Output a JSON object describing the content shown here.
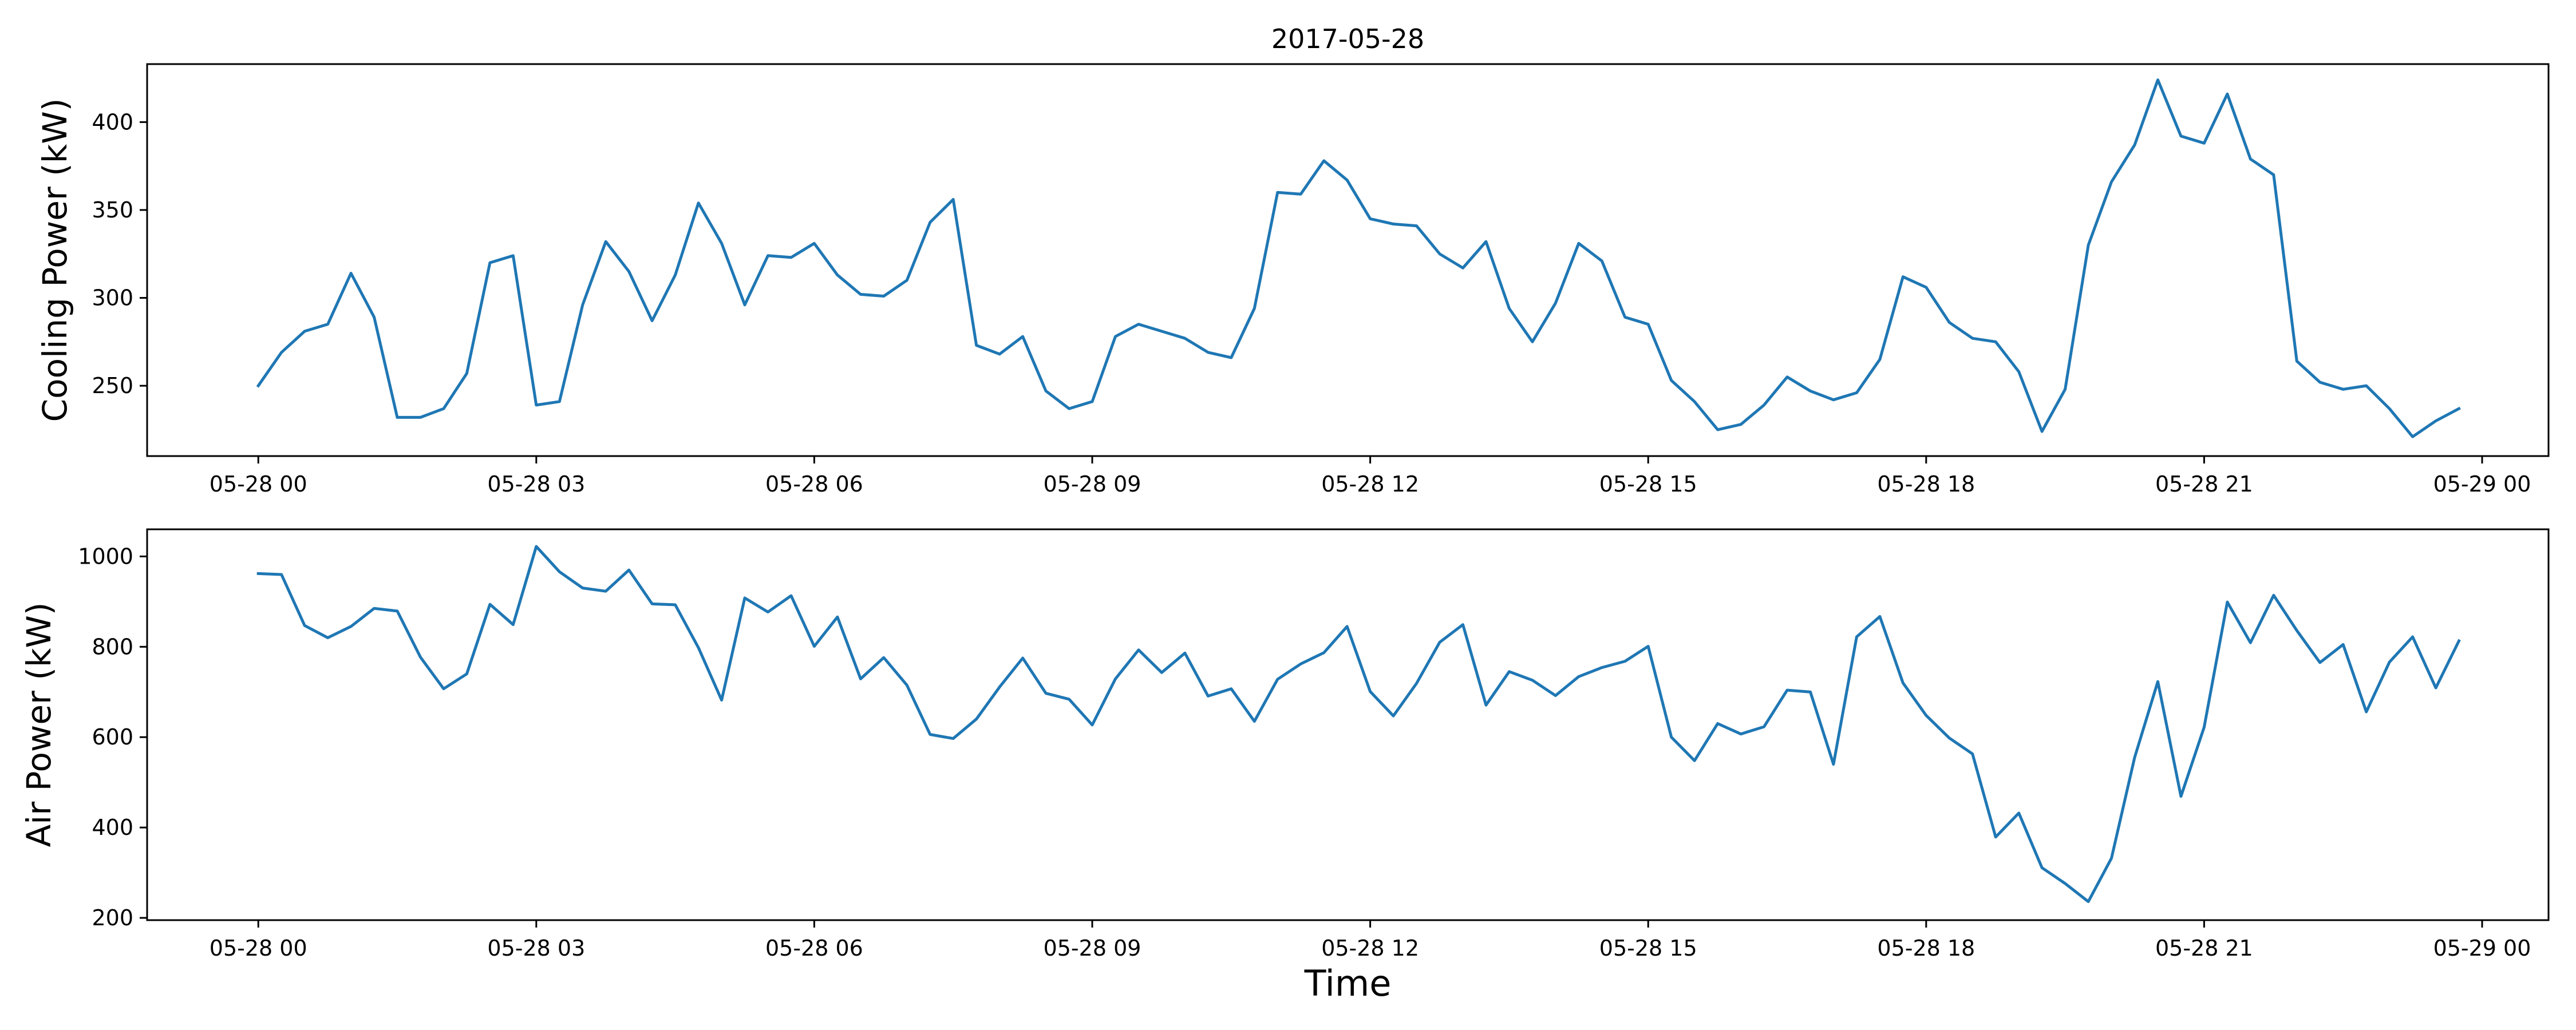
{
  "colors": {
    "line": "#1f77b4",
    "axes": "#000000",
    "background": "#ffffff"
  },
  "title": "2017-05-28",
  "xlabel": "Time",
  "chart_data": [
    {
      "type": "line",
      "title": "2017-05-28",
      "xlabel": "",
      "ylabel": "Cooling Power (kW)",
      "grid": false,
      "x_start": "2017-05-28 00:00",
      "x_interval_minutes": 15,
      "x_ticks": [
        "05-28 00",
        "05-28 03",
        "05-28 06",
        "05-28 09",
        "05-28 12",
        "05-28 15",
        "05-28 18",
        "05-28 21",
        "05-29 00"
      ],
      "y_ticks": [
        250,
        300,
        350,
        400
      ],
      "xlim": [
        "2017-05-27 22:48",
        "2017-05-29 00:43"
      ],
      "ylim": [
        210,
        433
      ],
      "series": [
        {
          "values": [
            250,
            269,
            281,
            285,
            314,
            289,
            232,
            232,
            237,
            257,
            320,
            324,
            239,
            241,
            296,
            332,
            315,
            287,
            313,
            354,
            331,
            296,
            324,
            323,
            331,
            313,
            302,
            301,
            310,
            343,
            356,
            273,
            268,
            278,
            247,
            237,
            241,
            278,
            285,
            281,
            277,
            269,
            266,
            294,
            360,
            359,
            378,
            367,
            345,
            342,
            341,
            325,
            317,
            332,
            294,
            275,
            297,
            331,
            321,
            289,
            285,
            253,
            241,
            225,
            228,
            239,
            255,
            247,
            242,
            246,
            265,
            312,
            306,
            286,
            277,
            275,
            258,
            224,
            248,
            330,
            366,
            387,
            424,
            392,
            388,
            416,
            379,
            370,
            264,
            252,
            248,
            250,
            237,
            221,
            230,
            237
          ]
        }
      ]
    },
    {
      "type": "line",
      "title": "",
      "xlabel": "Time",
      "ylabel": "Air Power (kW)",
      "grid": false,
      "x_start": "2017-05-28 00:00",
      "x_interval_minutes": 15,
      "x_ticks": [
        "05-28 00",
        "05-28 03",
        "05-28 06",
        "05-28 09",
        "05-28 12",
        "05-28 15",
        "05-28 18",
        "05-28 21",
        "05-29 00"
      ],
      "y_ticks": [
        200,
        400,
        600,
        800,
        1000
      ],
      "xlim": [
        "2017-05-27 22:48",
        "2017-05-29 00:43"
      ],
      "ylim": [
        195,
        1060
      ],
      "series": [
        {
          "values": [
            962,
            960,
            847,
            820,
            845,
            885,
            879,
            777,
            707,
            740,
            894,
            849,
            1022,
            966,
            930,
            923,
            970,
            895,
            893,
            798,
            682,
            908,
            877,
            913,
            801,
            866,
            729,
            776,
            715,
            606,
            597,
            640,
            711,
            775,
            697,
            684,
            627,
            729,
            793,
            743,
            786,
            691,
            707,
            635,
            728,
            762,
            787,
            845,
            701,
            647,
            719,
            810,
            849,
            671,
            745,
            726,
            692,
            734,
            754,
            768,
            801,
            600,
            548,
            630,
            607,
            623,
            704,
            700,
            540,
            822,
            867,
            720,
            648,
            598,
            563,
            379,
            432,
            311,
            276,
            236,
            332,
            555,
            723,
            469,
            622,
            899,
            809,
            914,
            836,
            765,
            805,
            656,
            766,
            822,
            709,
            813
          ]
        }
      ]
    }
  ]
}
